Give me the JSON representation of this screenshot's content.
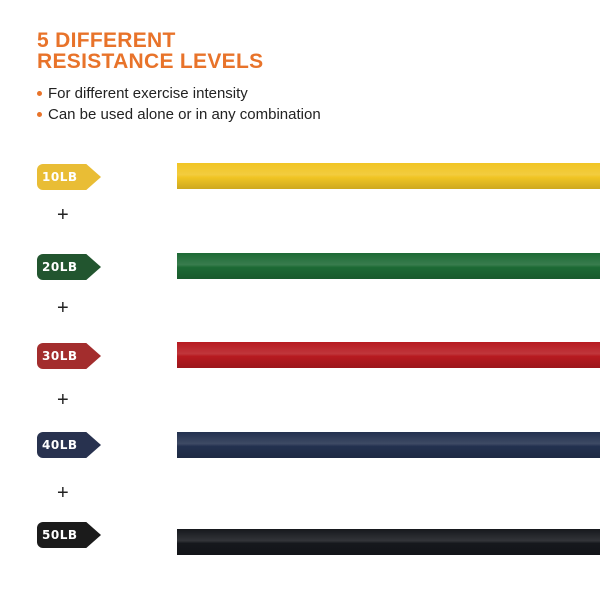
{
  "heading": {
    "line1": "5 DIFFERENT",
    "line2": "RESISTANCE LEVELS"
  },
  "bullets": [
    "For different exercise intensity",
    "Can be used alone or in any combination"
  ],
  "plus_symbol": "+",
  "accent_color": "#e8732a",
  "levels": [
    {
      "label": "10LB",
      "tag_color": "#e9bd35",
      "band_color": "#f1c524"
    },
    {
      "label": "20LB",
      "tag_color": "#22552f",
      "band_color": "#1d6a35"
    },
    {
      "label": "30LB",
      "tag_color": "#a32d2d",
      "band_color": "#b71a20"
    },
    {
      "label": "40LB",
      "tag_color": "#28324f",
      "band_color": "#23314f"
    },
    {
      "label": "50LB",
      "tag_color": "#1b1b1b",
      "band_color": "#16181d"
    }
  ]
}
